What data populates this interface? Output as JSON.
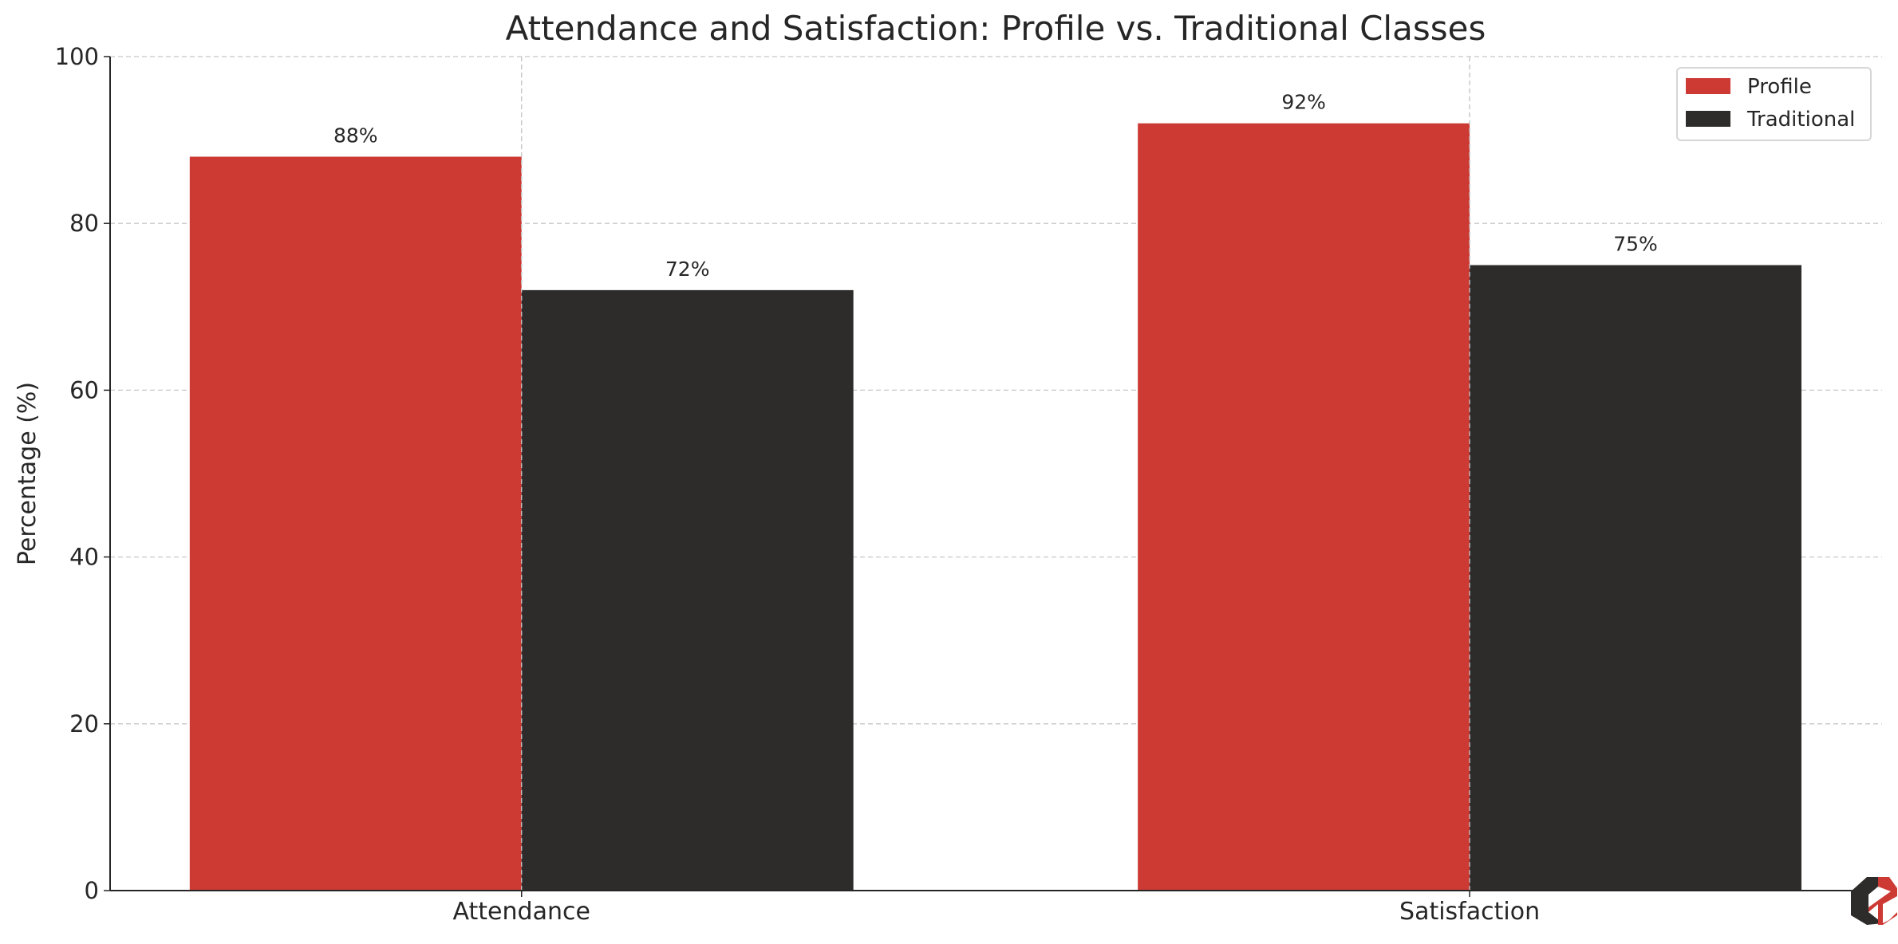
{
  "chart_data": {
    "type": "bar",
    "title": "Attendance and Satisfaction: Profile vs. Traditional Classes",
    "xlabel": "",
    "ylabel": "Percentage (%)",
    "categories": [
      "Attendance",
      "Satisfaction"
    ],
    "series": [
      {
        "name": "Profile",
        "values": [
          88,
          92
        ],
        "color": "#cd3a34",
        "labels": [
          "88%",
          "92%"
        ]
      },
      {
        "name": "Traditional",
        "values": [
          72,
          75
        ],
        "color": "#2d2c2a",
        "labels": [
          "72%",
          "75%"
        ]
      }
    ],
    "ylim": [
      0,
      100
    ],
    "yticks": [
      "0",
      "20",
      "40",
      "60",
      "80",
      "100"
    ],
    "grid": true,
    "legend_position": "top-right"
  },
  "logo": {
    "name": "hexagon-logo",
    "colors": [
      "#cd3a34",
      "#2d2c2a"
    ]
  }
}
